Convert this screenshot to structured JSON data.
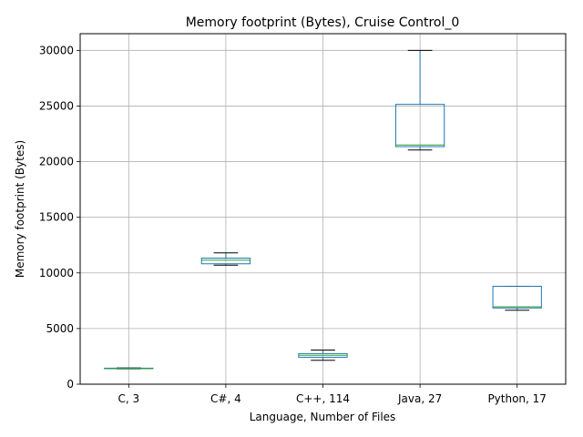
{
  "chart_data": {
    "type": "box",
    "title": "Memory footprint (Bytes), Cruise Control_0",
    "xlabel": "Language, Number of Files",
    "ylabel": "Memory footprint (Bytes)",
    "ylim": [
      0,
      31500
    ],
    "yticks": [
      0,
      5000,
      10000,
      15000,
      20000,
      25000,
      30000
    ],
    "grid": true,
    "categories": [
      "C, 3",
      "C#, 4",
      "C++, 114",
      "Java, 27",
      "Python, 17"
    ],
    "boxes": [
      {
        "category": "C, 3",
        "min": 1380,
        "q1": 1400,
        "median": 1420,
        "q3": 1440,
        "max": 1460
      },
      {
        "category": "C#, 4",
        "min": 10700,
        "q1": 10820,
        "median": 11150,
        "q3": 11330,
        "max": 11800
      },
      {
        "category": "C++, 114",
        "min": 2150,
        "q1": 2420,
        "median": 2600,
        "q3": 2750,
        "max": 3070
      },
      {
        "category": "Java, 27",
        "min": 21050,
        "q1": 21350,
        "median": 21500,
        "q3": 25150,
        "max": 30000
      },
      {
        "category": "Python, 17",
        "min": 6650,
        "q1": 6850,
        "median": 6950,
        "q3": 8800,
        "max": 8800
      }
    ],
    "colors": {
      "box": "#1f77b4",
      "median": "#2ca02c",
      "cap": "#000000",
      "grid": "#b0b0b0",
      "axis": "#000000"
    }
  }
}
